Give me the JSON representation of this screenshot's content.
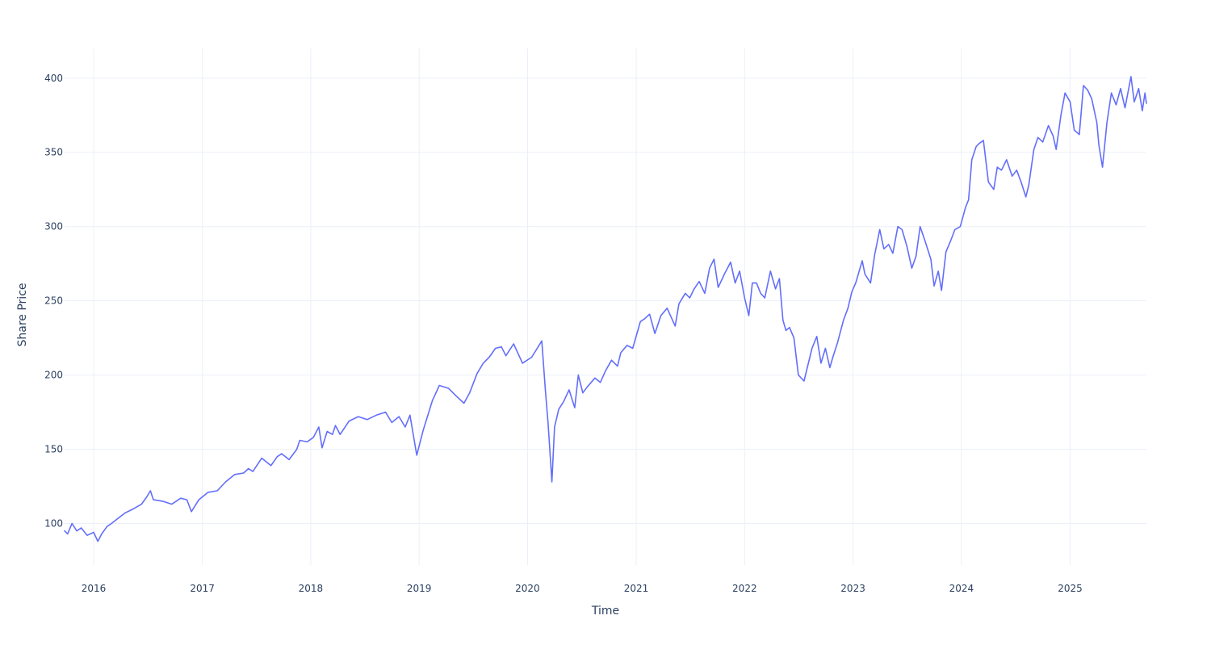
{
  "chart_data": {
    "type": "line",
    "title": "",
    "xlabel": "Time",
    "ylabel": "Share Price",
    "xlim": [
      "2015-09-25",
      "2025-09-15"
    ],
    "ylim": [
      72,
      420
    ],
    "x_ticks": [
      "2016",
      "2017",
      "2018",
      "2019",
      "2020",
      "2021",
      "2022",
      "2023",
      "2024",
      "2025"
    ],
    "y_ticks": [
      100,
      150,
      200,
      250,
      300,
      350,
      400
    ],
    "grid": true,
    "legend": "none",
    "line_color": "#636efa",
    "series": [
      {
        "x": [
          "2015-09-25",
          "2015-10-05",
          "2015-10-20",
          "2015-11-05",
          "2015-11-20",
          "2015-12-10",
          "2016-01-01",
          "2016-01-15",
          "2016-01-28",
          "2016-02-15",
          "2016-03-01",
          "2016-03-20",
          "2016-04-15",
          "2016-05-15",
          "2016-06-10",
          "2016-06-28",
          "2016-07-10",
          "2016-07-20",
          "2016-08-20",
          "2016-09-20",
          "2016-10-20",
          "2016-11-10",
          "2016-11-25",
          "2016-12-20",
          "2017-01-20",
          "2017-02-20",
          "2017-03-20",
          "2017-04-20",
          "2017-05-20",
          "2017-06-05",
          "2017-06-20",
          "2017-07-20",
          "2017-08-20",
          "2017-09-10",
          "2017-09-25",
          "2017-10-20",
          "2017-11-15",
          "2017-11-25",
          "2017-12-20",
          "2018-01-10",
          "2018-01-28",
          "2018-02-08",
          "2018-02-25",
          "2018-03-15",
          "2018-03-25",
          "2018-04-10",
          "2018-05-10",
          "2018-06-10",
          "2018-07-10",
          "2018-08-10",
          "2018-09-10",
          "2018-10-01",
          "2018-10-25",
          "2018-11-15",
          "2018-12-01",
          "2018-12-24",
          "2019-01-15",
          "2019-02-15",
          "2019-03-10",
          "2019-04-10",
          "2019-05-05",
          "2019-06-01",
          "2019-06-20",
          "2019-07-15",
          "2019-08-05",
          "2019-08-25",
          "2019-09-15",
          "2019-10-05",
          "2019-10-20",
          "2019-11-15",
          "2019-12-15",
          "2020-01-15",
          "2020-02-18",
          "2020-03-01",
          "2020-03-10",
          "2020-03-16",
          "2020-03-23",
          "2020-04-01",
          "2020-04-15",
          "2020-05-01",
          "2020-05-20",
          "2020-06-08",
          "2020-06-20",
          "2020-07-05",
          "2020-07-20",
          "2020-08-15",
          "2020-09-02",
          "2020-09-20",
          "2020-10-10",
          "2020-10-30",
          "2020-11-10",
          "2020-12-01",
          "2020-12-20",
          "2021-01-15",
          "2021-01-30",
          "2021-02-15",
          "2021-03-05",
          "2021-03-25",
          "2021-04-15",
          "2021-05-12",
          "2021-05-25",
          "2021-06-15",
          "2021-06-30",
          "2021-07-15",
          "2021-08-01",
          "2021-08-20",
          "2021-09-05",
          "2021-09-20",
          "2021-10-04",
          "2021-10-25",
          "2021-11-15",
          "2021-11-30",
          "2021-12-15",
          "2022-01-01",
          "2022-01-15",
          "2022-01-27",
          "2022-02-10",
          "2022-02-24",
          "2022-03-10",
          "2022-03-29",
          "2022-04-15",
          "2022-04-28",
          "2022-05-10",
          "2022-05-20",
          "2022-06-01",
          "2022-06-16",
          "2022-07-01",
          "2022-07-20",
          "2022-08-16",
          "2022-09-01",
          "2022-09-15",
          "2022-09-30",
          "2022-10-15",
          "2022-10-25",
          "2022-11-10",
          "2022-11-30",
          "2022-12-15",
          "2022-12-28",
          "2023-01-10",
          "2023-02-01",
          "2023-02-10",
          "2023-03-01",
          "2023-03-15",
          "2023-04-01",
          "2023-04-15",
          "2023-05-01",
          "2023-05-15",
          "2023-06-01",
          "2023-06-15",
          "2023-07-01",
          "2023-07-18",
          "2023-08-01",
          "2023-08-15",
          "2023-09-01",
          "2023-09-20",
          "2023-10-01",
          "2023-10-15",
          "2023-10-26",
          "2023-11-10",
          "2023-11-25",
          "2023-12-10",
          "2023-12-28",
          "2024-01-15",
          "2024-01-25",
          "2024-02-05",
          "2024-02-20",
          "2024-03-01",
          "2024-03-15",
          "2024-04-01",
          "2024-04-19",
          "2024-05-01",
          "2024-05-15",
          "2024-06-01",
          "2024-06-20",
          "2024-07-05",
          "2024-07-20",
          "2024-08-05",
          "2024-08-15",
          "2024-09-01",
          "2024-09-15",
          "2024-10-01",
          "2024-10-20",
          "2024-11-05",
          "2024-11-15",
          "2024-12-01",
          "2024-12-15",
          "2025-01-01",
          "2025-01-15",
          "2025-02-01",
          "2025-02-15",
          "2025-03-01",
          "2025-03-15",
          "2025-04-01",
          "2025-04-08",
          "2025-04-20",
          "2025-05-05",
          "2025-05-20",
          "2025-06-05",
          "2025-06-20",
          "2025-07-05",
          "2025-07-25",
          "2025-08-05",
          "2025-08-20",
          "2025-09-01",
          "2025-09-10",
          "2025-09-15"
        ],
        "y": [
          95,
          93,
          100,
          95,
          97,
          92,
          94,
          88,
          93,
          98,
          100,
          103,
          107,
          110,
          113,
          118,
          122,
          116,
          115,
          113,
          117,
          116,
          108,
          116,
          121,
          122,
          128,
          133,
          134,
          137,
          135,
          144,
          139,
          145,
          147,
          143,
          150,
          156,
          155,
          158,
          165,
          151,
          162,
          160,
          166,
          160,
          169,
          172,
          170,
          173,
          175,
          168,
          172,
          165,
          173,
          146,
          163,
          183,
          193,
          191,
          186,
          181,
          188,
          201,
          208,
          212,
          218,
          219,
          213,
          221,
          208,
          212,
          223,
          190,
          168,
          150,
          128,
          165,
          177,
          182,
          190,
          178,
          200,
          188,
          192,
          198,
          195,
          203,
          210,
          206,
          215,
          220,
          218,
          236,
          238,
          241,
          228,
          240,
          245,
          233,
          248,
          255,
          252,
          258,
          263,
          255,
          272,
          278,
          259,
          268,
          276,
          262,
          270,
          252,
          240,
          262,
          262,
          255,
          252,
          270,
          258,
          265,
          237,
          230,
          232,
          225,
          200,
          196,
          218,
          226,
          208,
          218,
          205,
          212,
          222,
          237,
          245,
          256,
          262,
          277,
          268,
          262,
          281,
          298,
          285,
          288,
          282,
          300,
          298,
          287,
          272,
          280,
          300,
          290,
          278,
          260,
          270,
          257,
          283,
          290,
          298,
          300,
          313,
          318,
          345,
          354,
          356,
          358,
          330,
          325,
          340,
          338,
          345,
          334,
          338,
          330,
          320,
          328,
          352,
          360,
          357,
          368,
          361,
          352,
          375,
          390,
          384,
          365,
          362,
          395,
          392,
          386,
          370,
          355,
          340,
          370,
          390,
          382,
          393,
          380,
          401,
          384,
          393,
          378,
          390,
          383
        ]
      }
    ]
  }
}
